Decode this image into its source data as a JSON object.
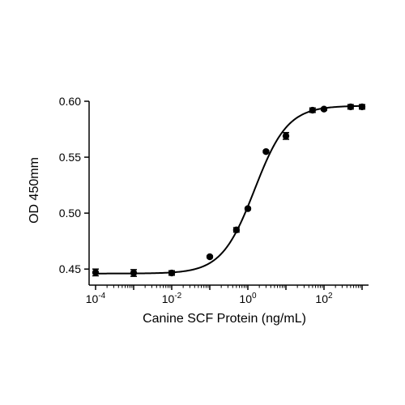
{
  "chart_data": {
    "type": "scatter",
    "title": "",
    "xlabel": "Canine SCF Protein (ng/mL)",
    "ylabel": "OD 450mm",
    "x_scale": "log",
    "xlim": [
      0.0001,
      1000
    ],
    "ylim": [
      0.44,
      0.6
    ],
    "x_ticks": [
      {
        "value": 0.0001,
        "base": "10",
        "exp": "-4"
      },
      {
        "value": 0.01,
        "base": "10",
        "exp": "-2"
      },
      {
        "value": 1,
        "base": "10",
        "exp": "0"
      },
      {
        "value": 100,
        "base": "10",
        "exp": "2"
      }
    ],
    "y_ticks": [
      "0.45",
      "0.50",
      "0.55",
      "0.60"
    ],
    "grid": false,
    "legend": "none",
    "series": [
      {
        "x": [
          0.0001,
          0.001,
          0.01,
          0.1,
          0.5,
          1.0,
          3.0,
          10,
          50,
          100,
          500,
          1000
        ],
        "y": [
          0.447,
          0.4465,
          0.4465,
          0.461,
          0.485,
          0.504,
          0.555,
          0.569,
          0.592,
          0.593,
          0.595,
          0.595
        ],
        "error": [
          0.003,
          0.003,
          0.002,
          0.001,
          0.002,
          0.001,
          0.001,
          0.003,
          0.002,
          0.001,
          0.002,
          0.002
        ],
        "curve": "4PL sigmoid fit",
        "color": "#000000"
      }
    ]
  }
}
